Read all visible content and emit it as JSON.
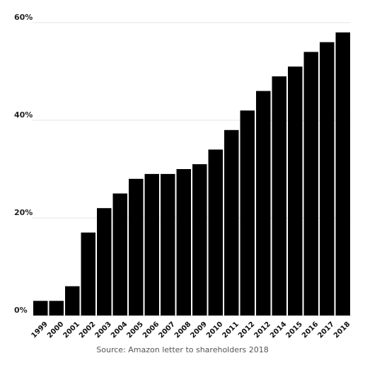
{
  "chart_data": {
    "type": "bar",
    "title": "",
    "xlabel": "",
    "ylabel": "",
    "categories": [
      "1999",
      "2000",
      "2001",
      "2002",
      "2003",
      "2004",
      "2005",
      "2006",
      "2007",
      "2008",
      "2009",
      "2010",
      "2011",
      "2012",
      "2012",
      "2014",
      "2015",
      "2016",
      "2017",
      "2018"
    ],
    "values": [
      3,
      3,
      6,
      17,
      22,
      25,
      28,
      29,
      29,
      30,
      31,
      34,
      38,
      42,
      46,
      49,
      51,
      54,
      56,
      58
    ],
    "ylim": [
      0,
      60
    ],
    "yticks": [
      0,
      20,
      40,
      60
    ],
    "ytick_labels": [
      "0%",
      "20%",
      "40%",
      "60%"
    ],
    "grid": true,
    "bar_color": "#000000",
    "grid_color": "#e6e6e6",
    "legend": null
  },
  "source": "Source: Amazon letter to shareholders 2018"
}
